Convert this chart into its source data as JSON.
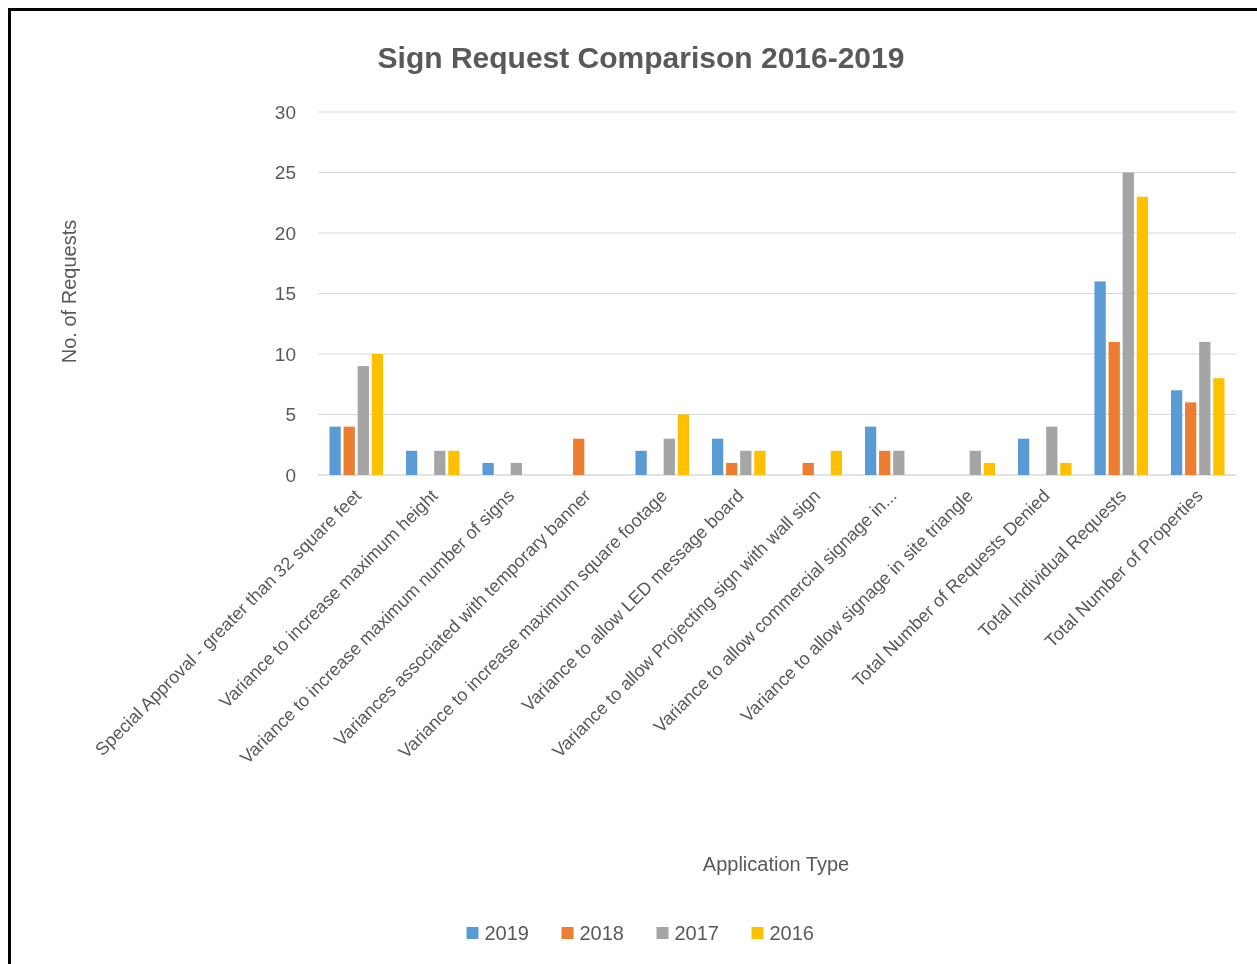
{
  "chart_data": {
    "type": "bar",
    "title": "Sign Request Comparison 2016-2019",
    "xlabel": "Application Type",
    "ylabel": "No. of Requests",
    "categories": [
      "Special Approval - greater than 32 square feet",
      "Variance to increase maximum height",
      "Variance to increase maximum number of signs",
      "Variances associated with temporary banner",
      "Variance to increase maximum square footage",
      "Variance to allow LED message board",
      "Variance to allow Projecting sign with wall sign",
      "Variance to allow commercial signage in...",
      "Variance to allow signage in site triangle",
      "Total Number of Requests Denied",
      "Total Individual Requests",
      "Total Number of Properties"
    ],
    "series": [
      {
        "name": "2019",
        "color": "#5b9bd5",
        "values": [
          4,
          2,
          1,
          0,
          2,
          3,
          0,
          4,
          0,
          3,
          16,
          7
        ]
      },
      {
        "name": "2018",
        "color": "#ed7d31",
        "values": [
          4,
          0,
          0,
          3,
          0,
          1,
          1,
          2,
          0,
          0,
          11,
          6
        ]
      },
      {
        "name": "2017",
        "color": "#a5a5a5",
        "values": [
          9,
          2,
          1,
          0,
          3,
          2,
          0,
          2,
          2,
          4,
          25,
          11
        ]
      },
      {
        "name": "2016",
        "color": "#ffc000",
        "values": [
          10,
          2,
          0,
          0,
          5,
          2,
          2,
          0,
          1,
          1,
          23,
          8
        ]
      }
    ],
    "ylim": [
      0,
      30
    ],
    "yticks": [
      0,
      5,
      10,
      15,
      20,
      25,
      30
    ],
    "grid": "y",
    "legend": "bottom"
  }
}
